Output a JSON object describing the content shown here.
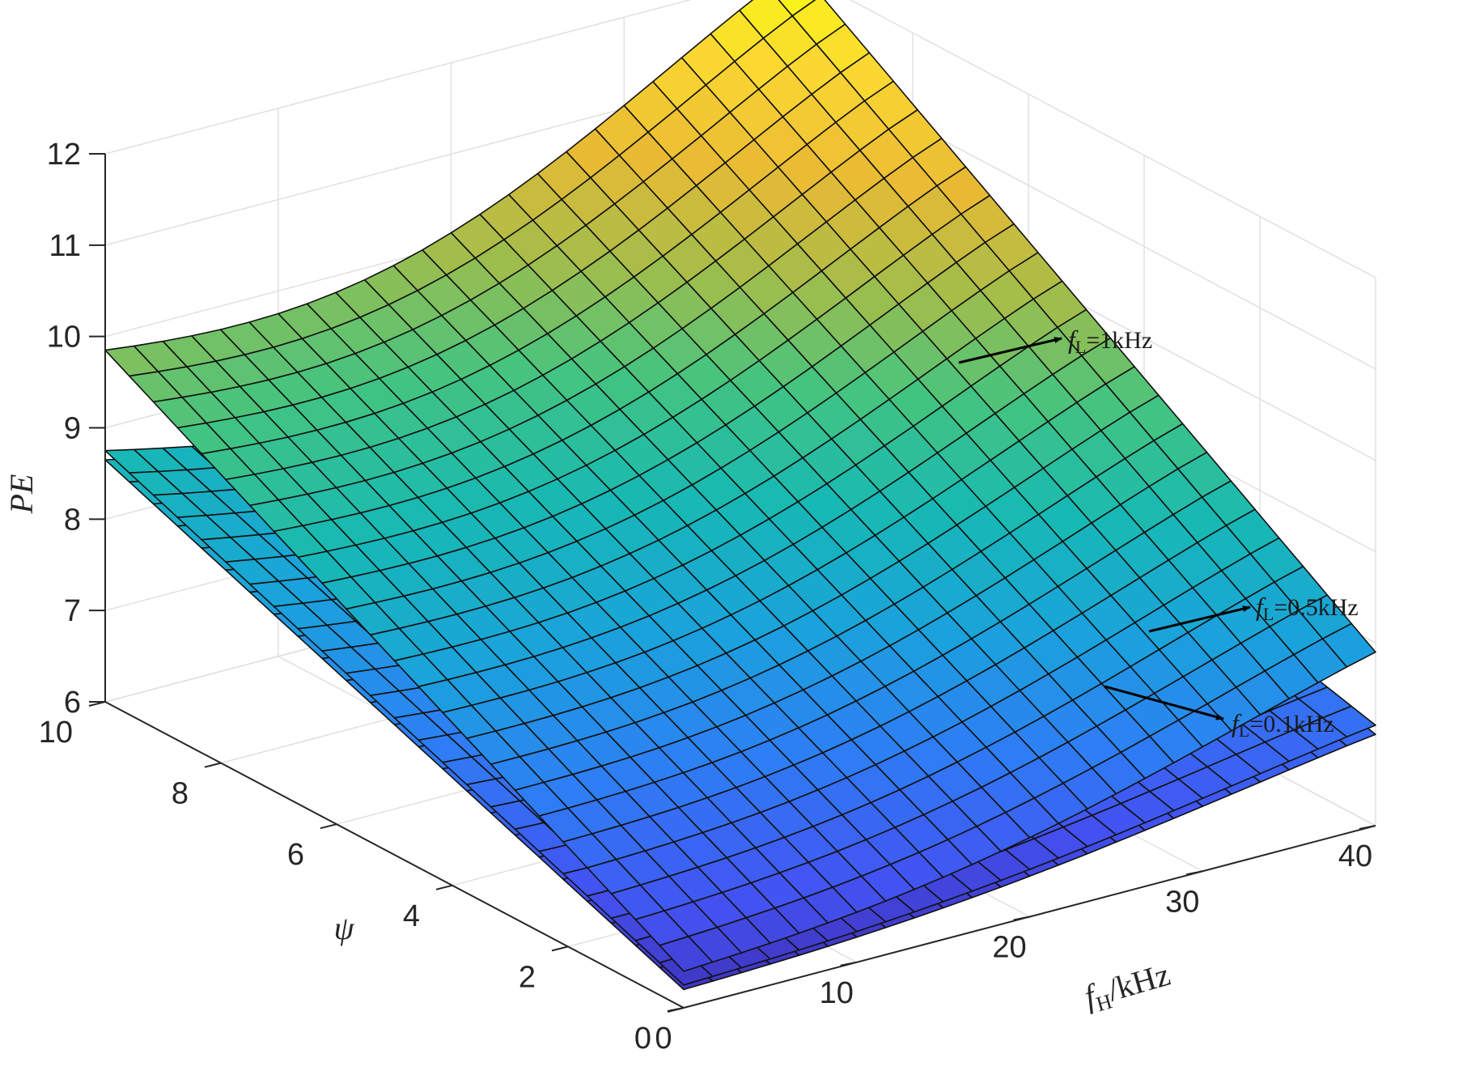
{
  "chart_data": {
    "type": "surface",
    "x": {
      "label_main": "f",
      "label_sub": "H",
      "label_rest": "/kHz",
      "lim": [
        0,
        40
      ],
      "ticks": [
        "0",
        "10",
        "20",
        "30",
        "40"
      ],
      "tick_values": [
        0,
        10,
        20,
        30,
        40
      ]
    },
    "y": {
      "label": "ψ",
      "lim": [
        0,
        10
      ],
      "ticks": [
        "0",
        "2",
        "4",
        "6",
        "8",
        "10"
      ],
      "tick_values": [
        0,
        2,
        4,
        6,
        8,
        10
      ]
    },
    "z": {
      "label": "PE",
      "lim": [
        6,
        12
      ],
      "ticks": [
        "6",
        "7",
        "8",
        "9",
        "10",
        "11",
        "12"
      ],
      "tick_values": [
        6,
        7,
        8,
        9,
        10,
        11,
        12
      ]
    },
    "grid": true,
    "colormap": [
      "#3e26a8",
      "#4352f2",
      "#2e7ef5",
      "#1aa3db",
      "#17b9b4",
      "#43c480",
      "#a3bd4a",
      "#e9ba34",
      "#fbd732",
      "#f9fb14"
    ],
    "series": [
      {
        "name_main": "f",
        "name_sub": "L",
        "name_rest": "=1kHz",
        "corner_values": {
          "fH0_psi0": 6.4,
          "fH0_psi10": 9.85,
          "fH40_psi0": 7.9,
          "fH40_psi10": 12.05
        }
      },
      {
        "name_main": "f",
        "name_sub": "L",
        "name_rest": "=0.5kHz",
        "corner_values": {
          "fH0_psi0": 6.25,
          "fH0_psi10": 8.75,
          "fH40_psi0": 7.1,
          "fH40_psi10": 8.75
        }
      },
      {
        "name_main": "f",
        "name_sub": "L",
        "name_rest": "=0.1kHz",
        "corner_values": {
          "fH0_psi0": 6.2,
          "fH0_psi10": 8.65,
          "fH40_psi0": 7.0,
          "fH40_psi10": 8.7
        }
      }
    ]
  }
}
